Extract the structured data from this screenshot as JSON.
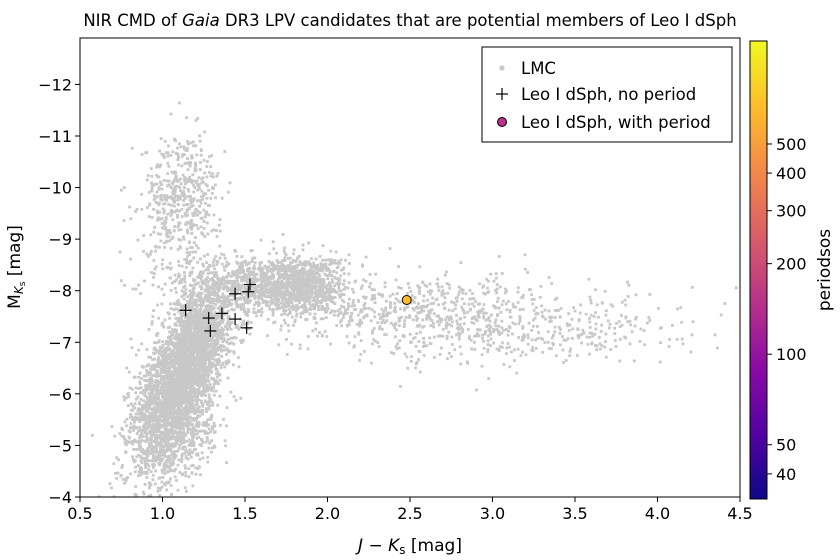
{
  "chart_data": {
    "type": "scatter",
    "title_prefix": "NIR CMD of ",
    "title_italic": "Gaia",
    "title_suffix": " DR3 LPV candidates that are potential members of Leo I dSph",
    "xlabel": "J − K",
    "xlabel_sub": "s",
    "xlabel_unit": " [mag]",
    "ylabel": "M",
    "ylabel_sub": "K",
    "ylabel_subsub": "s",
    "ylabel_unit": " [mag]",
    "xlim": [
      0.5,
      4.5
    ],
    "ylim": [
      -4,
      -12.9
    ],
    "y_inverted": true,
    "grid": false,
    "legend_position": "top-right",
    "x_ticks": [
      0.5,
      1.0,
      1.5,
      2.0,
      2.5,
      3.0,
      3.5,
      4.0,
      4.5
    ],
    "x_tick_labels": [
      "0.5",
      "1.0",
      "1.5",
      "2.0",
      "2.5",
      "3.0",
      "3.5",
      "4.0",
      "4.5"
    ],
    "y_ticks": [
      -4,
      -5,
      -6,
      -7,
      -8,
      -9,
      -10,
      -11,
      -12
    ],
    "y_tick_labels": [
      "−4",
      "−5",
      "−6",
      "−7",
      "−8",
      "−9",
      "−10",
      "−11",
      "−12"
    ],
    "colorbar": {
      "label": "periodsos",
      "scale": "log",
      "range": [
        33,
        1100
      ],
      "ticks": [
        40,
        50,
        100,
        200,
        300,
        400,
        500
      ],
      "tick_labels": [
        "40",
        "50",
        "100",
        "200",
        "300",
        "400",
        "500"
      ],
      "colormap": [
        "#0d0887",
        "#5302a3",
        "#8b0aa5",
        "#b83289",
        "#db5c68",
        "#f48849",
        "#febd2a",
        "#f0f921"
      ]
    },
    "series": [
      {
        "name": "LMC",
        "marker": "point",
        "color": "#c8c8c8",
        "description_points": "dense background cloud",
        "density_components": [
          {
            "x": 1.1,
            "y": -6.2,
            "sx": 0.13,
            "sy": 0.55,
            "rho": 0.55,
            "w": 0.27
          },
          {
            "x": 1.2,
            "y": -7.1,
            "sx": 0.13,
            "sy": 0.5,
            "rho": 0.5,
            "w": 0.18
          },
          {
            "x": 1.05,
            "y": -5.1,
            "sx": 0.13,
            "sy": 0.5,
            "rho": 0.4,
            "w": 0.12
          },
          {
            "x": 1.12,
            "y": -9.8,
            "sx": 0.12,
            "sy": 0.6,
            "rho": 0.0,
            "w": 0.07
          },
          {
            "x": 1.55,
            "y": -8.1,
            "sx": 0.25,
            "sy": 0.3,
            "rho": 0.0,
            "w": 0.13
          },
          {
            "x": 1.85,
            "y": -8.1,
            "sx": 0.12,
            "sy": 0.28,
            "rho": 0.0,
            "w": 0.1
          },
          {
            "x": 2.55,
            "y": -7.6,
            "sx": 0.4,
            "sy": 0.35,
            "rho": 0.3,
            "w": 0.08
          },
          {
            "x": 3.3,
            "y": -7.2,
            "sx": 0.45,
            "sy": 0.35,
            "rho": 0.3,
            "w": 0.05
          }
        ]
      },
      {
        "name": "Leo I dSph, no period",
        "marker": "plus",
        "color": "#000000",
        "points": [
          {
            "x": 1.14,
            "y": -7.62
          },
          {
            "x": 1.28,
            "y": -7.47
          },
          {
            "x": 1.29,
            "y": -7.22
          },
          {
            "x": 1.36,
            "y": -7.56
          },
          {
            "x": 1.44,
            "y": -7.94
          },
          {
            "x": 1.44,
            "y": -7.45
          },
          {
            "x": 1.51,
            "y": -7.28
          },
          {
            "x": 1.52,
            "y": -7.98
          },
          {
            "x": 1.53,
            "y": -8.12
          }
        ]
      },
      {
        "name": "Leo I dSph, with period",
        "marker": "circle",
        "legend_color": "#b83289",
        "points": [
          {
            "x": 2.48,
            "y": -7.82,
            "period": 650
          }
        ]
      }
    ]
  }
}
